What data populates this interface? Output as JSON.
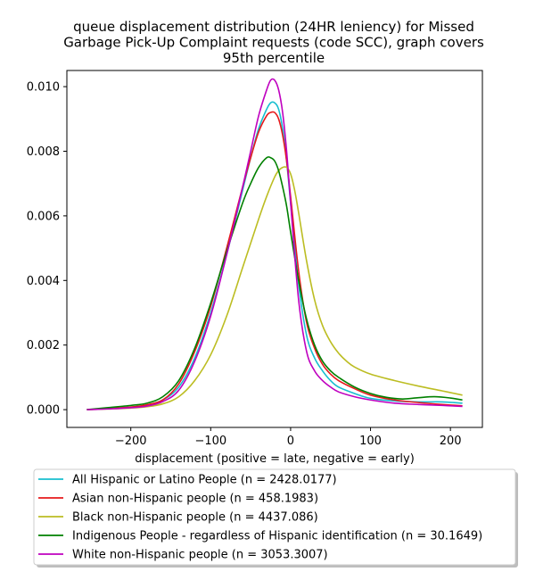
{
  "chart_data": {
    "type": "line",
    "title_lines": [
      "queue displacement distribution (24HR leniency) for Missed",
      "Garbage Pick-Up Complaint  requests (code SCC), graph covers",
      "95th percentile"
    ],
    "xlabel": "displacement (positive = late, negative = early)",
    "ylabel": "",
    "xlim": [
      -280,
      240
    ],
    "ylim": [
      -0.00055,
      0.0105
    ],
    "xticks": [
      -200,
      -100,
      0,
      100,
      200
    ],
    "xtick_labels": [
      "−200",
      "−100",
      "0",
      "100",
      "200"
    ],
    "yticks": [
      0.0,
      0.002,
      0.004,
      0.006,
      0.008,
      0.01
    ],
    "ytick_labels": [
      "0.000",
      "0.002",
      "0.004",
      "0.006",
      "0.008",
      "0.010"
    ],
    "grid": false,
    "legend_position": "below the plot",
    "series": [
      {
        "name": "All Hispanic or Latino People (n = 2428.0177)",
        "color": "#17becf",
        "x": [
          -255,
          -230,
          -200,
          -180,
          -160,
          -140,
          -120,
          -100,
          -80,
          -60,
          -50,
          -40,
          -30,
          -25,
          -20,
          -15,
          -10,
          -5,
          0,
          10,
          20,
          30,
          40,
          50,
          60,
          80,
          100,
          130,
          160,
          190,
          215
        ],
        "y": [
          0.0,
          3e-05,
          8e-05,
          0.00014,
          0.0003,
          0.0007,
          0.0016,
          0.003,
          0.0048,
          0.0068,
          0.0078,
          0.0087,
          0.0093,
          0.0095,
          0.0095,
          0.0093,
          0.0087,
          0.0077,
          0.0064,
          0.0039,
          0.0023,
          0.0016,
          0.0012,
          0.0009,
          0.0007,
          0.0005,
          0.00035,
          0.00027,
          0.00024,
          0.00024,
          0.0002
        ]
      },
      {
        "name": "Asian non-Hispanic people (n = 458.1983)",
        "color": "#e6191b",
        "x": [
          -255,
          -230,
          -200,
          -180,
          -160,
          -140,
          -120,
          -100,
          -80,
          -60,
          -50,
          -40,
          -30,
          -25,
          -20,
          -15,
          -10,
          -5,
          0,
          10,
          20,
          30,
          40,
          50,
          60,
          80,
          100,
          130,
          160,
          190,
          215
        ],
        "y": [
          0.0,
          3e-05,
          8e-05,
          0.00015,
          0.0003,
          0.0008,
          0.0018,
          0.0032,
          0.005,
          0.0069,
          0.0078,
          0.0086,
          0.0091,
          0.0092,
          0.0092,
          0.009,
          0.0085,
          0.0077,
          0.0066,
          0.0043,
          0.0027,
          0.0019,
          0.0014,
          0.0011,
          0.0009,
          0.00065,
          0.00045,
          0.0003,
          0.00022,
          0.00016,
          0.00012
        ]
      },
      {
        "name": "Black non-Hispanic people (n = 4437.086)",
        "color": "#bcbd22",
        "x": [
          -255,
          -230,
          -200,
          -180,
          -160,
          -140,
          -120,
          -100,
          -80,
          -60,
          -40,
          -30,
          -20,
          -15,
          -10,
          -5,
          0,
          5,
          10,
          20,
          30,
          40,
          50,
          60,
          70,
          80,
          100,
          130,
          160,
          190,
          215
        ],
        "y": [
          0.0,
          2e-05,
          5e-05,
          9e-05,
          0.00018,
          0.0004,
          0.0009,
          0.0017,
          0.0029,
          0.0044,
          0.0059,
          0.0066,
          0.0072,
          0.0074,
          0.0075,
          0.0075,
          0.0073,
          0.0068,
          0.0061,
          0.0046,
          0.0034,
          0.0026,
          0.0021,
          0.00175,
          0.0015,
          0.00132,
          0.0011,
          0.0009,
          0.00073,
          0.00058,
          0.00045
        ]
      },
      {
        "name": "Indigenous People - regardless of Hispanic identification (n = 30.1649)",
        "color": "#008000",
        "x": [
          -255,
          -230,
          -200,
          -180,
          -160,
          -140,
          -120,
          -100,
          -80,
          -60,
          -50,
          -40,
          -30,
          -25,
          -20,
          -15,
          -10,
          -5,
          0,
          10,
          20,
          30,
          40,
          50,
          60,
          80,
          100,
          120,
          140,
          160,
          180,
          200,
          215
        ],
        "y": [
          0.0,
          6e-05,
          0.00013,
          0.0002,
          0.0004,
          0.0009,
          0.0019,
          0.0033,
          0.0049,
          0.0064,
          0.007,
          0.0075,
          0.0078,
          0.0078,
          0.0077,
          0.0074,
          0.0069,
          0.0063,
          0.0055,
          0.004,
          0.0028,
          0.002,
          0.0015,
          0.0012,
          0.001,
          0.0007,
          0.0005,
          0.00038,
          0.00033,
          0.00037,
          0.0004,
          0.00036,
          0.0003
        ]
      },
      {
        "name": "White non-Hispanic people (n = 3053.3007)",
        "color": "#bf00bf",
        "x": [
          -255,
          -230,
          -200,
          -180,
          -160,
          -140,
          -120,
          -100,
          -80,
          -60,
          -50,
          -40,
          -30,
          -25,
          -20,
          -15,
          -10,
          -5,
          0,
          10,
          20,
          30,
          40,
          50,
          60,
          80,
          100,
          130,
          160,
          190,
          215
        ],
        "y": [
          0.0,
          2e-05,
          6e-05,
          0.00011,
          0.00025,
          0.0006,
          0.0015,
          0.0029,
          0.0048,
          0.0069,
          0.008,
          0.0091,
          0.0099,
          0.0102,
          0.0102,
          0.0099,
          0.0092,
          0.008,
          0.0064,
          0.0034,
          0.0018,
          0.0012,
          0.0009,
          0.0007,
          0.00055,
          0.0004,
          0.0003,
          0.0002,
          0.00016,
          0.00013,
          0.0001
        ]
      }
    ]
  }
}
